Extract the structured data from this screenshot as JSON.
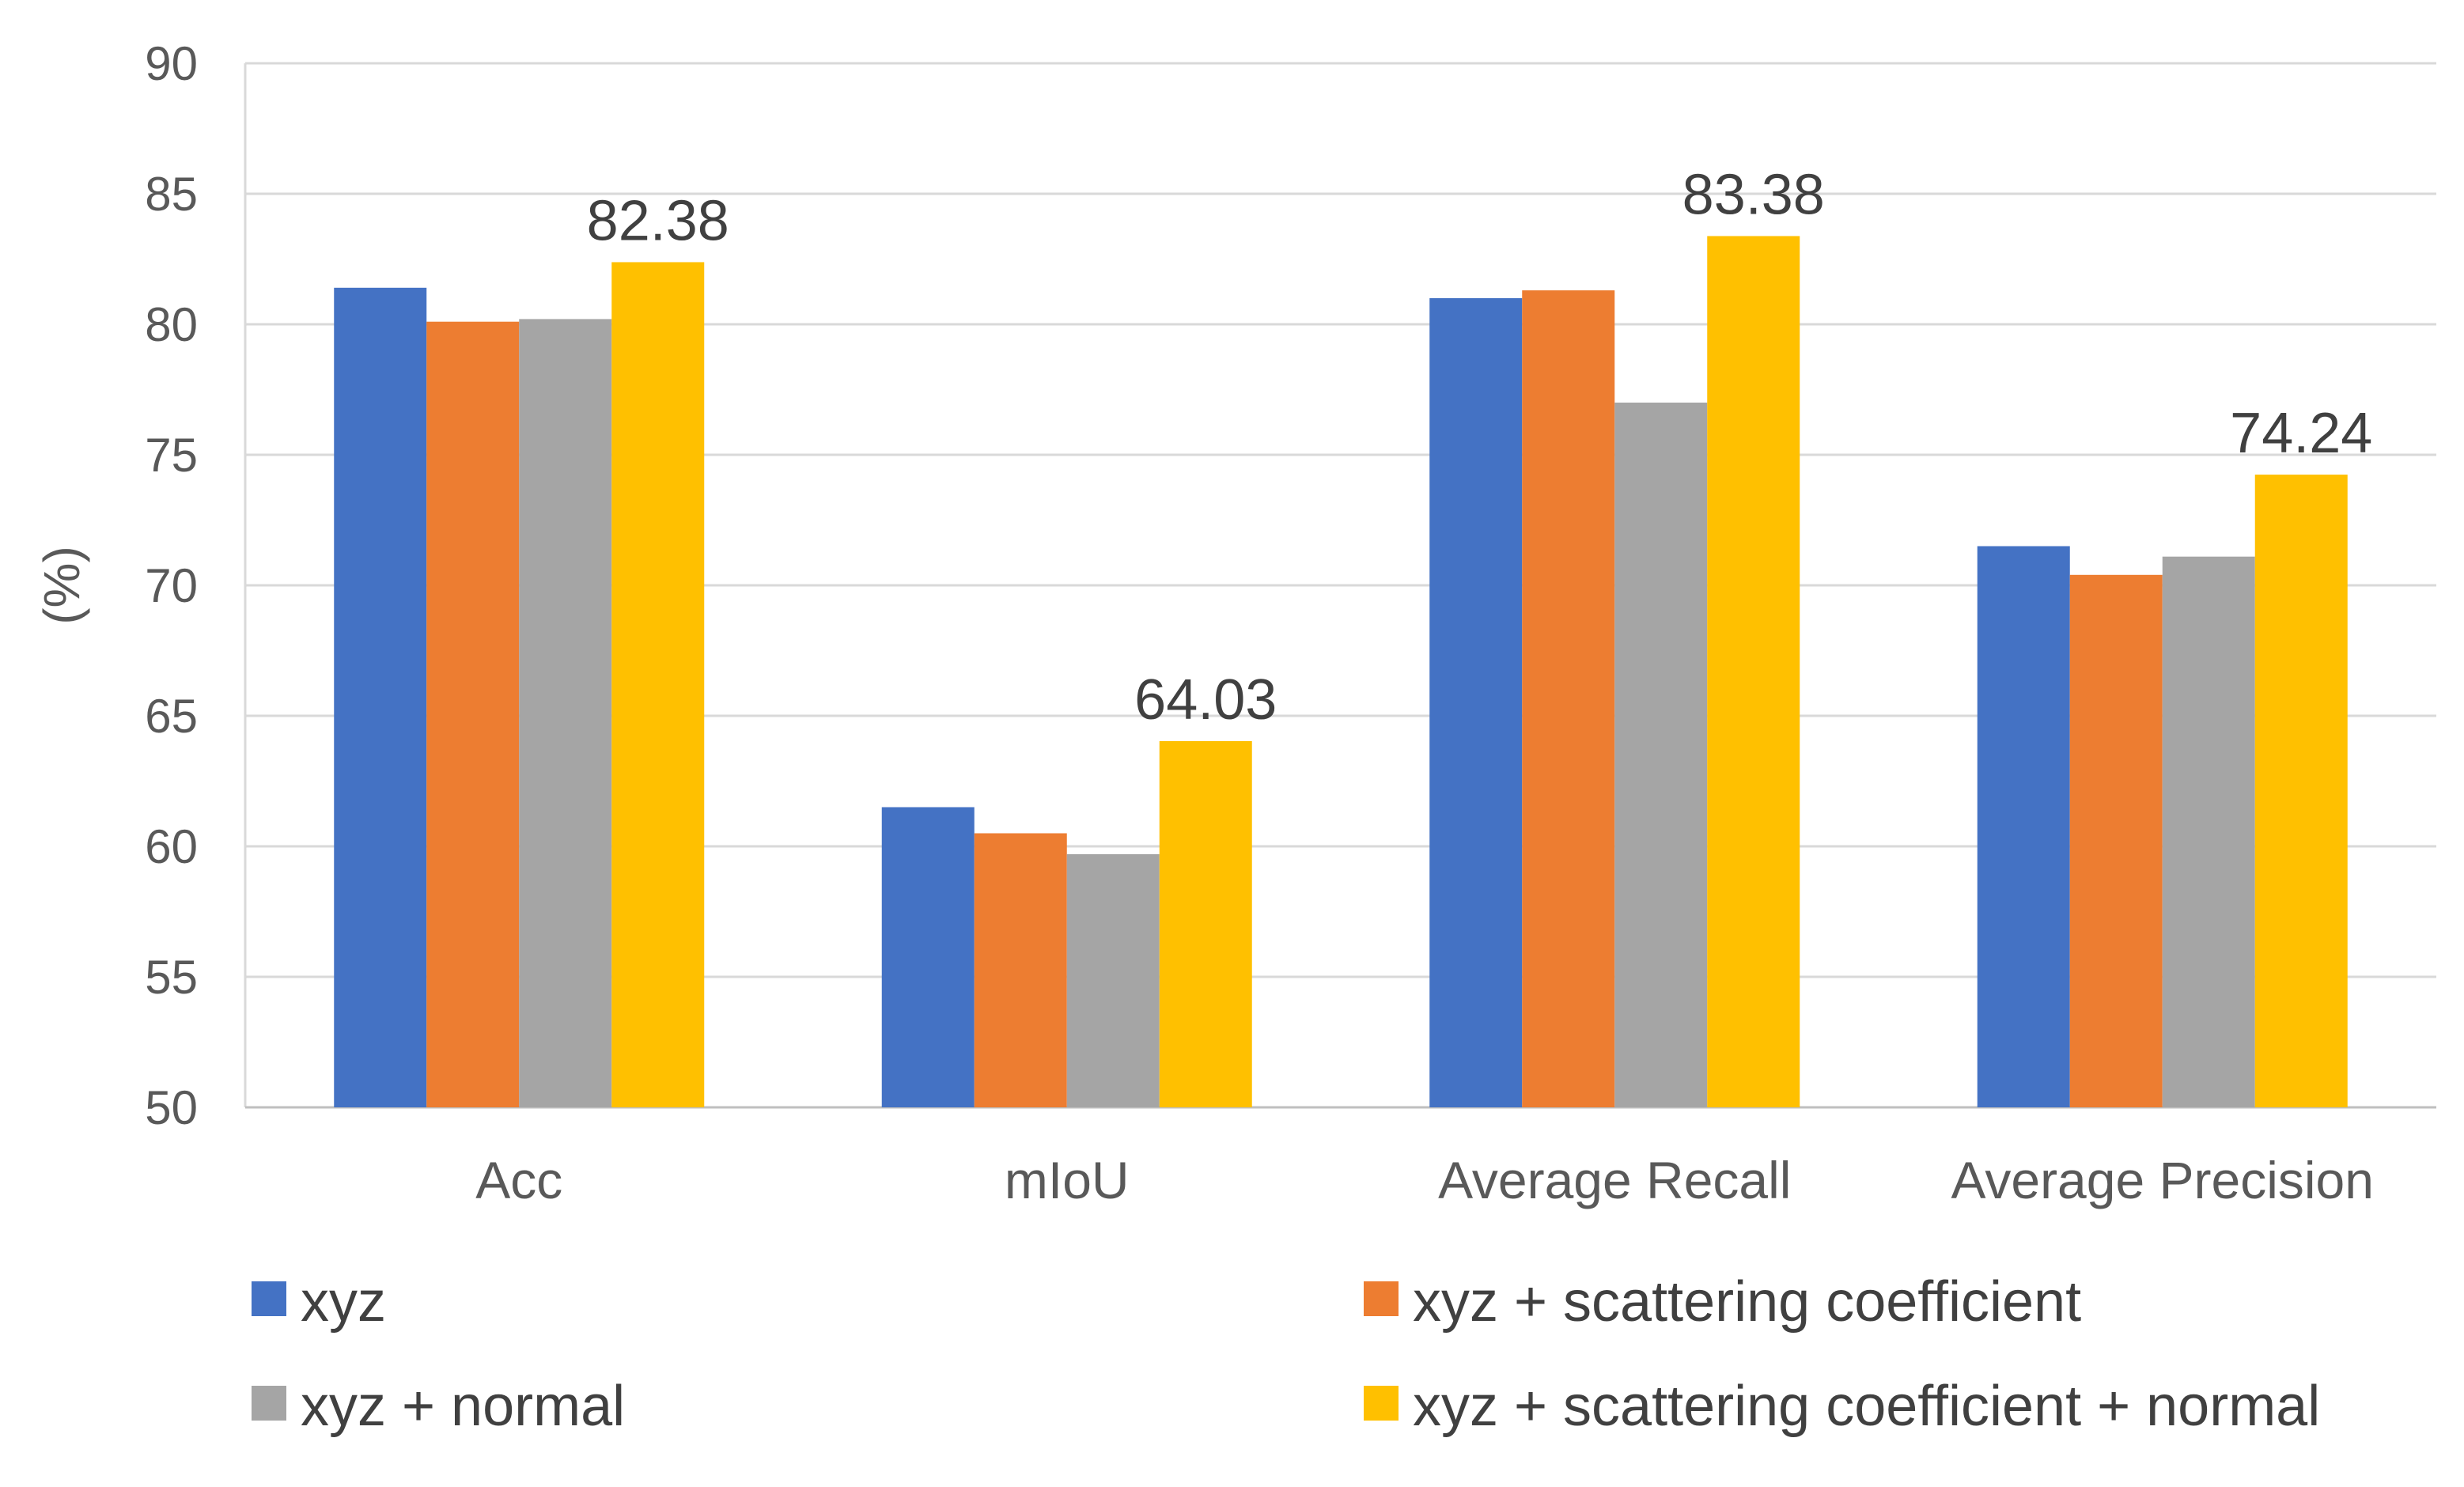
{
  "chart_data": {
    "type": "bar",
    "title": "",
    "xlabel": "",
    "ylabel": "(%)",
    "ylim": [
      50,
      90
    ],
    "yticks": [
      50,
      55,
      60,
      65,
      70,
      75,
      80,
      85,
      90
    ],
    "grid": true,
    "legend_position": "bottom",
    "categories": [
      "Acc",
      "mIoU",
      "Average Recall",
      "Average Precision"
    ],
    "series": [
      {
        "name": "xyz",
        "color": "#4472C4",
        "values": [
          81.4,
          61.5,
          81.0,
          71.5
        ]
      },
      {
        "name": "xyz + scattering coefficient",
        "color": "#ED7D31",
        "values": [
          80.1,
          60.5,
          81.3,
          70.4
        ]
      },
      {
        "name": "xyz + normal",
        "color": "#A5A5A5",
        "values": [
          80.2,
          59.7,
          77.0,
          71.1
        ]
      },
      {
        "name": "xyz + scattering coefficient + normal",
        "color": "#FFC000",
        "values": [
          82.38,
          64.03,
          83.38,
          74.24
        ]
      }
    ],
    "data_labels": [
      {
        "series": 3,
        "category": 0,
        "text": "82.38"
      },
      {
        "series": 3,
        "category": 1,
        "text": "64.03"
      },
      {
        "series": 3,
        "category": 2,
        "text": "83.38"
      },
      {
        "series": 3,
        "category": 3,
        "text": "74.24"
      }
    ]
  }
}
